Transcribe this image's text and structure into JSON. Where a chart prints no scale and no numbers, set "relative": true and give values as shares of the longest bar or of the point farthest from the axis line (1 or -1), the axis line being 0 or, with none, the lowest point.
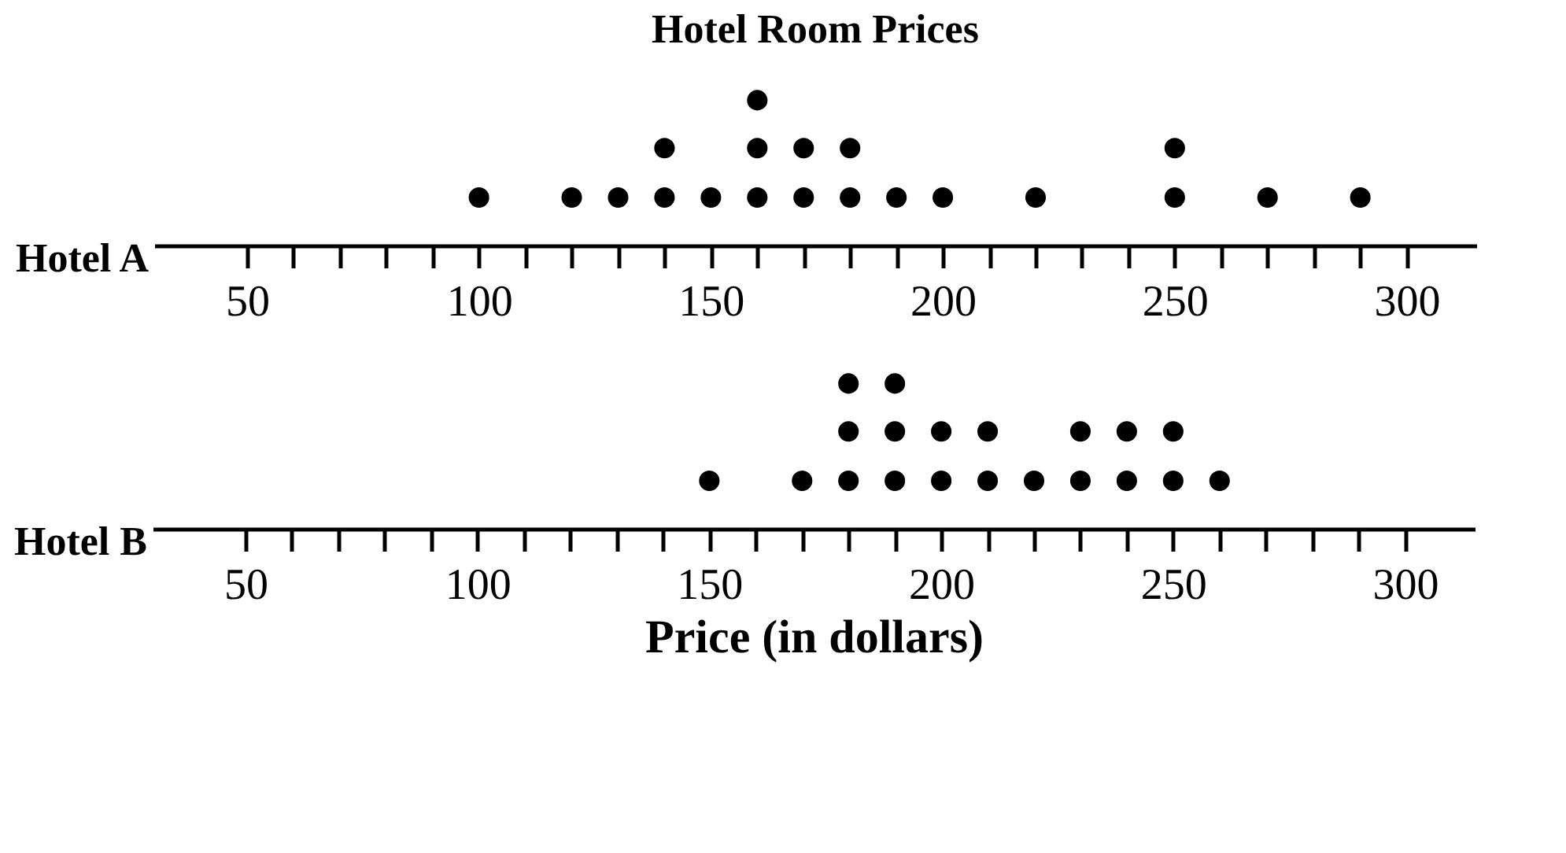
{
  "chart_data": [
    {
      "type": "scatter",
      "title": "Hotel Room Prices",
      "ylabel": "Hotel A",
      "marker": "circle",
      "relative": true,
      "tick_labels": "x",
      "xlim": [
        30,
        315
      ],
      "xticks": [
        50,
        {
          "value": 60,
          "label": null
        },
        {
          "value": 70,
          "label": null
        },
        {
          "value": 80,
          "label": null
        },
        {
          "value": 90,
          "label": null
        },
        100,
        {
          "value": 110,
          "label": null
        },
        {
          "value": 120,
          "label": null
        },
        {
          "value": 130,
          "label": null
        },
        {
          "value": 140,
          "label": null
        },
        150,
        {
          "value": 160,
          "label": null
        },
        {
          "value": 170,
          "label": null
        },
        {
          "value": 180,
          "label": null
        },
        {
          "value": 190,
          "label": null
        },
        200,
        {
          "value": 210,
          "label": null
        },
        {
          "value": 220,
          "label": null
        },
        {
          "value": 230,
          "label": null
        },
        {
          "value": 240,
          "label": null
        },
        250,
        {
          "value": 260,
          "label": null
        },
        {
          "value": 270,
          "label": null
        },
        {
          "value": 280,
          "label": null
        },
        {
          "value": 290,
          "label": null
        },
        300
      ],
      "series": [
        {
          "color": "#000000",
          "x": [
            100,
            120,
            130,
            140,
            140,
            150,
            160,
            160,
            160,
            170,
            170,
            180,
            180,
            190,
            200,
            220,
            250,
            250,
            270,
            290
          ],
          "values": [
            0.33,
            0.33,
            0.33,
            0.33,
            0.67,
            0.33,
            0.33,
            0.67,
            1,
            0.33,
            0.67,
            0.33,
            0.67,
            0.33,
            0.33,
            0.33,
            0.33,
            0.67,
            0.33,
            0.33
          ]
        }
      ]
    },
    {
      "type": "scatter",
      "ylabel": "Hotel B",
      "xlabel": "Price (in dollars)",
      "marker": "circle",
      "relative": true,
      "tick_labels": "x",
      "xlim": [
        30,
        315
      ],
      "xticks": [
        50,
        {
          "value": 60,
          "label": null
        },
        {
          "value": 70,
          "label": null
        },
        {
          "value": 80,
          "label": null
        },
        {
          "value": 90,
          "label": null
        },
        100,
        {
          "value": 110,
          "label": null
        },
        {
          "value": 120,
          "label": null
        },
        {
          "value": 130,
          "label": null
        },
        {
          "value": 140,
          "label": null
        },
        150,
        {
          "value": 160,
          "label": null
        },
        {
          "value": 170,
          "label": null
        },
        {
          "value": 180,
          "label": null
        },
        {
          "value": 190,
          "label": null
        },
        200,
        {
          "value": 210,
          "label": null
        },
        {
          "value": 220,
          "label": null
        },
        {
          "value": 230,
          "label": null
        },
        {
          "value": 240,
          "label": null
        },
        250,
        {
          "value": 260,
          "label": null
        },
        {
          "value": 270,
          "label": null
        },
        {
          "value": 280,
          "label": null
        },
        {
          "value": 290,
          "label": null
        },
        300
      ],
      "series": [
        {
          "color": "#000000",
          "x": [
            150,
            170,
            180,
            180,
            180,
            190,
            190,
            190,
            200,
            200,
            210,
            210,
            220,
            230,
            230,
            240,
            240,
            250,
            250,
            260
          ],
          "values": [
            0.33,
            0.33,
            0.33,
            0.67,
            1,
            0.33,
            0.67,
            1,
            0.33,
            0.67,
            0.33,
            0.67,
            0.33,
            0.33,
            0.67,
            0.33,
            0.67,
            0.33,
            0.67,
            0.33
          ]
        }
      ]
    }
  ]
}
